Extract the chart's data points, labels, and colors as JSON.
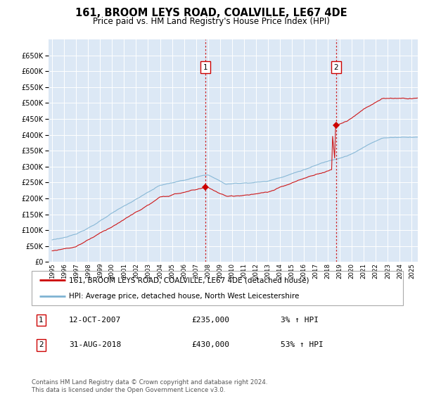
{
  "title": "161, BROOM LEYS ROAD, COALVILLE, LE67 4DE",
  "subtitle": "Price paid vs. HM Land Registry's House Price Index (HPI)",
  "legend_line1": "161, BROOM LEYS ROAD, COALVILLE, LE67 4DE (detached house)",
  "legend_line2": "HPI: Average price, detached house, North West Leicestershire",
  "sale1_date": "12-OCT-2007",
  "sale1_price": 235000,
  "sale1_price_str": "£235,000",
  "sale1_hpi": "3% ↑ HPI",
  "sale1_year": 2007.78,
  "sale2_date": "31-AUG-2018",
  "sale2_price": 430000,
  "sale2_price_str": "£430,000",
  "sale2_hpi": "53% ↑ HPI",
  "sale2_year": 2018.67,
  "background_color": "#dce8f5",
  "red_line_color": "#cc0000",
  "blue_line_color": "#7fb3d3",
  "vline_color": "#cc0000",
  "ylim_min": 0,
  "ylim_max": 700000,
  "yticks": [
    0,
    50000,
    100000,
    150000,
    200000,
    250000,
    300000,
    350000,
    400000,
    450000,
    500000,
    550000,
    600000,
    650000
  ],
  "footer_text": "Contains HM Land Registry data © Crown copyright and database right 2024.\nThis data is licensed under the Open Government Licence v3.0."
}
